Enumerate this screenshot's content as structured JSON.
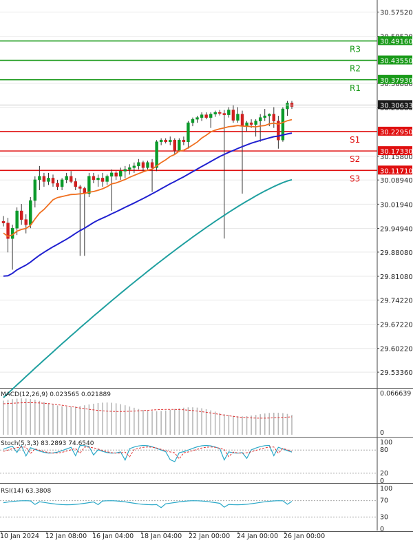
{
  "chart_data": [
    {
      "type": "candlestick",
      "panel": "price",
      "yticks": [
        "30.57520",
        "30.50520",
        "30.36880",
        "30.29880",
        "30.15800",
        "30.08940",
        "30.01940",
        "29.94940",
        "29.88080",
        "29.81080",
        "29.74220",
        "29.67220",
        "29.60220",
        "29.53360"
      ],
      "ylim": [
        29.49,
        30.61
      ],
      "last_price": {
        "value": 30.30633,
        "label": "30.30633"
      },
      "levels": [
        {
          "name": "R3",
          "value": 30.4916,
          "label": "30.49160",
          "color": "#1a9a1a"
        },
        {
          "name": "R2",
          "value": 30.4355,
          "label": "30.43550",
          "color": "#1a9a1a"
        },
        {
          "name": "R1",
          "value": 30.3793,
          "label": "30.37930",
          "color": "#1a9a1a"
        },
        {
          "name": "S1",
          "value": 30.2295,
          "label": "30.22950",
          "color": "#e01010"
        },
        {
          "name": "S2",
          "value": 30.1733,
          "label": "30.17330",
          "color": "#e01010"
        },
        {
          "name": "S3",
          "value": 30.1171,
          "label": "30.11710",
          "color": "#e01010"
        }
      ],
      "candles": [
        [
          29.97,
          29.985,
          29.955,
          29.965
        ],
        [
          29.965,
          29.98,
          29.88,
          29.92
        ],
        [
          29.92,
          29.96,
          29.83,
          29.95
        ],
        [
          29.95,
          30.01,
          29.93,
          30.0
        ],
        [
          30.0,
          30.02,
          29.96,
          29.975
        ],
        [
          29.975,
          29.99,
          29.935,
          29.96
        ],
        [
          29.96,
          30.04,
          29.95,
          30.03
        ],
        [
          30.03,
          30.1,
          30.01,
          30.09
        ],
        [
          30.09,
          30.13,
          30.06,
          30.1
        ],
        [
          30.1,
          30.11,
          30.07,
          30.085
        ],
        [
          30.085,
          30.11,
          30.075,
          30.095
        ],
        [
          30.095,
          30.105,
          30.07,
          30.08
        ],
        [
          30.08,
          30.09,
          30.06,
          30.07
        ],
        [
          30.07,
          30.095,
          30.06,
          30.09
        ],
        [
          30.09,
          30.11,
          30.08,
          30.1
        ],
        [
          30.1,
          30.115,
          30.08,
          30.085
        ],
        [
          30.085,
          30.095,
          30.06,
          30.07
        ],
        [
          30.07,
          30.075,
          29.87,
          30.065
        ],
        [
          30.065,
          30.07,
          29.87,
          30.05
        ],
        [
          30.05,
          30.11,
          30.04,
          30.1
        ],
        [
          30.1,
          30.11,
          30.08,
          30.09
        ],
        [
          30.09,
          30.105,
          30.07,
          30.095
        ],
        [
          30.095,
          30.11,
          30.07,
          30.085
        ],
        [
          30.085,
          30.105,
          30.075,
          30.1
        ],
        [
          30.1,
          30.12,
          30.0,
          30.11
        ],
        [
          30.11,
          30.115,
          30.09,
          30.1
        ],
        [
          30.1,
          30.125,
          30.09,
          30.115
        ],
        [
          30.115,
          30.13,
          30.095,
          30.12
        ],
        [
          30.12,
          30.135,
          30.105,
          30.125
        ],
        [
          30.125,
          30.14,
          30.11,
          30.13
        ],
        [
          30.13,
          30.15,
          30.12,
          30.14
        ],
        [
          30.14,
          30.145,
          30.115,
          30.125
        ],
        [
          30.125,
          30.145,
          30.12,
          30.14
        ],
        [
          30.14,
          30.15,
          30.055,
          30.125
        ],
        [
          30.125,
          30.205,
          30.115,
          30.2
        ],
        [
          30.2,
          30.21,
          30.19,
          30.205
        ],
        [
          30.205,
          30.21,
          30.195,
          30.2
        ],
        [
          30.2,
          30.215,
          30.19,
          30.205
        ],
        [
          30.205,
          30.21,
          30.165,
          30.175
        ],
        [
          30.175,
          30.21,
          30.17,
          30.205
        ],
        [
          30.205,
          30.215,
          30.19,
          30.2
        ],
        [
          30.2,
          30.26,
          30.18,
          30.255
        ],
        [
          30.255,
          30.27,
          30.245,
          30.265
        ],
        [
          30.265,
          30.275,
          30.255,
          30.27
        ],
        [
          30.27,
          30.285,
          30.26,
          30.278
        ],
        [
          30.278,
          30.285,
          30.265,
          30.27
        ],
        [
          30.27,
          30.285,
          30.24,
          30.28
        ],
        [
          30.28,
          30.29,
          30.272,
          30.285
        ],
        [
          30.285,
          30.292,
          30.276,
          30.282
        ],
        [
          30.282,
          30.292,
          29.92,
          30.278
        ],
        [
          30.278,
          30.3,
          30.27,
          30.292
        ],
        [
          30.292,
          30.305,
          30.255,
          30.262
        ],
        [
          30.262,
          30.3,
          30.255,
          30.28
        ],
        [
          30.28,
          30.29,
          30.05,
          30.245
        ],
        [
          30.245,
          30.26,
          30.23,
          30.255
        ],
        [
          30.255,
          30.265,
          30.24,
          30.25
        ],
        [
          30.25,
          30.265,
          30.215,
          30.26
        ],
        [
          30.26,
          30.28,
          30.2,
          30.27
        ],
        [
          30.27,
          30.295,
          30.26,
          30.275
        ],
        [
          30.275,
          30.282,
          30.245,
          30.28
        ],
        [
          30.28,
          30.3,
          30.24,
          30.26
        ],
        [
          30.26,
          30.275,
          30.18,
          30.205
        ],
        [
          30.205,
          30.3,
          30.2,
          30.295
        ],
        [
          30.295,
          30.318,
          30.275,
          30.312
        ],
        [
          30.312,
          30.318,
          30.295,
          30.302
        ]
      ],
      "ma_fast": {
        "name": "MA fast",
        "color": "#f07020",
        "start": 29.9,
        "end": 30.25
      },
      "ma_mid": {
        "name": "MA mid",
        "color": "#2020d0",
        "start": 29.76,
        "end": 30.21
      },
      "ma_slow": {
        "name": "MA slow",
        "color": "#20a0a0",
        "start": 29.46,
        "end": 30.09
      }
    },
    {
      "type": "histogram",
      "panel": "macd",
      "label": "MACD(12,26,9) 0.023565 0.021889",
      "yticks": [
        "0.066639",
        "0"
      ],
      "ylim": [
        0,
        0.066639
      ]
    },
    {
      "type": "line",
      "panel": "stoch",
      "label": "Stoch(5,3,3) 83.2893 74.6540",
      "yticks": [
        "100",
        "80",
        "20",
        "0"
      ],
      "ylim": [
        0,
        100
      ]
    },
    {
      "type": "line",
      "panel": "rsi",
      "label": "RSI(14) 63.3808",
      "yticks": [
        "100",
        "70",
        "30",
        "0"
      ],
      "ylim": [
        0,
        100
      ]
    }
  ],
  "xaxis": {
    "labels": [
      "10 Jan 2024",
      "12 Jan 08:00",
      "16 Jan 04:00",
      "18 Jan 04:00",
      "22 Jan 00:00",
      "24 Jan 00:00",
      "26 Jan 00:00"
    ]
  },
  "colors": {
    "bull": "#0a9a2a",
    "bear": "#d02020",
    "grid": "#e8e8e8",
    "axis": "#222222",
    "last_price_bg": "#1a1a1a"
  }
}
